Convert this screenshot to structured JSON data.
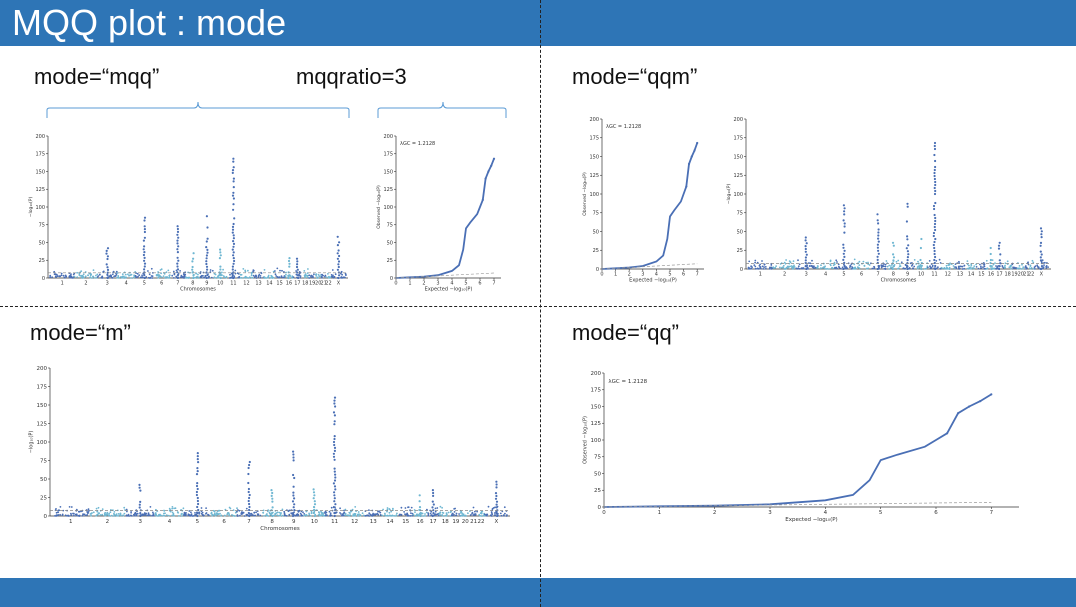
{
  "slide": {
    "title": "MQQ plot : mode",
    "accent": "#2e75b6"
  },
  "panels": {
    "mqq": {
      "mode_label": "mode=“mqq”",
      "ratio_label": "mqqratio=3"
    },
    "qqm": {
      "mode_label": "mode=“qqm”"
    },
    "m": {
      "mode_label": "mode=“m”"
    },
    "qq": {
      "mode_label": "mode=“qq”"
    }
  },
  "chart_data": [
    {
      "type": "scatter",
      "name_hint": "manhattan",
      "xlabel": "Chromosomes",
      "ylabel": "−log₁₀(P)",
      "ylim": [
        0,
        200
      ],
      "yticks": [
        0,
        25,
        50,
        75,
        100,
        125,
        150,
        175,
        200
      ],
      "chromosomes": [
        "1",
        "2",
        "3",
        "4",
        "5",
        "6",
        "7",
        "8",
        "9",
        "10",
        "11",
        "12",
        "13",
        "14",
        "15",
        "16",
        "17",
        "18",
        "19",
        "20",
        "21",
        "22",
        "X"
      ],
      "colors": [
        "#4a6fb5",
        "#6fb7d2"
      ],
      "threshold": 7.3,
      "peaks": [
        {
          "chr": "3",
          "max": 42
        },
        {
          "chr": "5",
          "max": 85
        },
        {
          "chr": "7",
          "max": 73
        },
        {
          "chr": "8",
          "max": 35
        },
        {
          "chr": "9",
          "max": 87
        },
        {
          "chr": "10",
          "max": 40
        },
        {
          "chr": "11",
          "max": 168
        },
        {
          "chr": "16",
          "max": 28
        },
        {
          "chr": "17",
          "max": 35
        },
        {
          "chr": "X",
          "max": 58
        }
      ]
    },
    {
      "type": "scatter",
      "name_hint": "qq",
      "annotation": "λGC = 1.2128",
      "xlabel": "Expected −log₁₀(P)",
      "ylabel": "Observed −log₁₀(P)",
      "xlim": [
        0,
        7.5
      ],
      "ylim": [
        0,
        200
      ],
      "xticks": [
        0,
        1,
        2,
        3,
        4,
        5,
        6,
        7
      ],
      "yticks": [
        0,
        25,
        50,
        75,
        100,
        125,
        150,
        175,
        200
      ],
      "curve": [
        [
          0,
          0
        ],
        [
          1,
          1
        ],
        [
          2,
          2
        ],
        [
          3,
          4
        ],
        [
          4,
          10
        ],
        [
          4.5,
          18
        ],
        [
          4.8,
          40
        ],
        [
          5.0,
          70
        ],
        [
          5.3,
          78
        ],
        [
          5.8,
          90
        ],
        [
          6.0,
          100
        ],
        [
          6.2,
          110
        ],
        [
          6.4,
          140
        ],
        [
          6.6,
          150
        ],
        [
          6.8,
          158
        ],
        [
          7.0,
          168
        ]
      ],
      "color": "#4a6fb5"
    }
  ]
}
